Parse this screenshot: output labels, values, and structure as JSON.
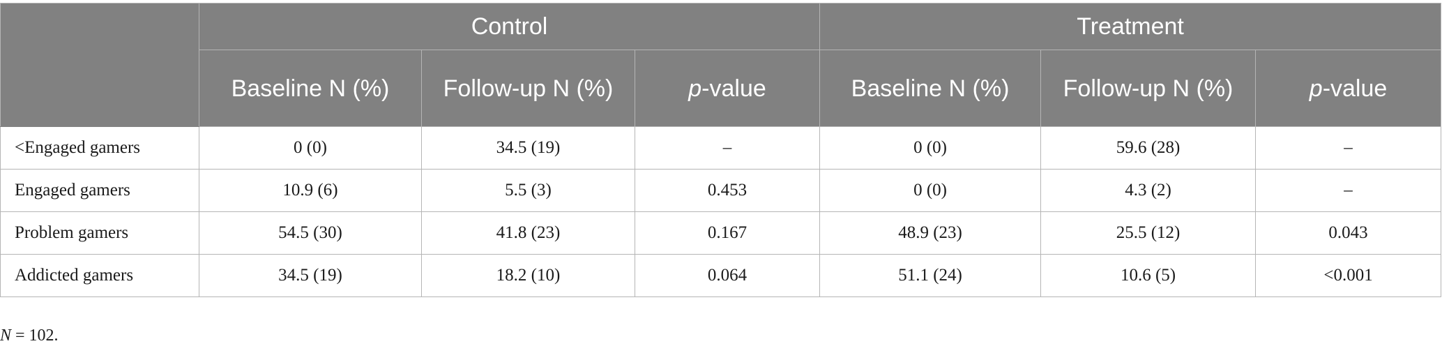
{
  "table": {
    "groups": [
      "Control",
      "Treatment"
    ],
    "control_columns": {
      "baseline": "Baseline N (%)",
      "followup": "Follow-up N (%)",
      "p_italic": "p",
      "p_suffix": "-value"
    },
    "treatment_columns": {
      "baseline": "Baseline N (%)",
      "followup": "Follow-up N (%)",
      "p_italic": "p",
      "p_suffix": "-value"
    },
    "rows": [
      {
        "label": "<Engaged gamers",
        "values": [
          "0 (0)",
          "34.5 (19)",
          "–",
          "0 (0)",
          "59.6 (28)",
          "–"
        ]
      },
      {
        "label": "Engaged gamers",
        "values": [
          "10.9 (6)",
          "5.5 (3)",
          "0.453",
          "0 (0)",
          "4.3 (2)",
          "–"
        ]
      },
      {
        "label": "Problem gamers",
        "values": [
          "54.5 (30)",
          "41.8 (23)",
          "0.167",
          "48.9 (23)",
          "25.5 (12)",
          "0.043"
        ]
      },
      {
        "label": "Addicted gamers",
        "values": [
          "34.5 (19)",
          "18.2 (10)",
          "0.064",
          "51.1 (24)",
          "10.6 (5)",
          "<0.001"
        ]
      }
    ]
  },
  "footnote": {
    "symbol": "N",
    "text": " = 102."
  },
  "colors": {
    "header_background": "#818181",
    "header_text": "#ffffff",
    "grid_line": "#b5b5b5"
  }
}
